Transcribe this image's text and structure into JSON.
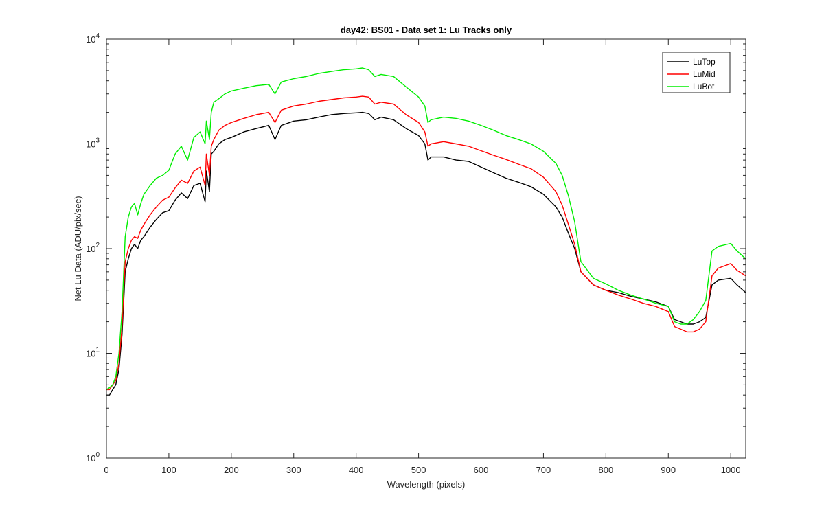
{
  "chart_data": {
    "type": "line",
    "title": "day42: BS01 - Data set 1: Lu Tracks only",
    "xlabel": "Wavelength (pixels)",
    "ylabel": "Net Lu Data (ADU/pix/sec)",
    "xlim": [
      0,
      1024
    ],
    "ylim": [
      1,
      10000
    ],
    "yscale": "log",
    "grid": false,
    "legend_position": "top-right",
    "x_ticks": [
      0,
      100,
      200,
      300,
      400,
      500,
      600,
      700,
      800,
      900,
      1000
    ],
    "y_ticks": [
      {
        "value": 1,
        "base": "10",
        "exp": "0"
      },
      {
        "value": 10,
        "base": "10",
        "exp": "1"
      },
      {
        "value": 100,
        "base": "10",
        "exp": "2"
      },
      {
        "value": 1000,
        "base": "10",
        "exp": "3"
      },
      {
        "value": 10000,
        "base": "10",
        "exp": "4"
      }
    ],
    "series": [
      {
        "name": "LuTop",
        "color": "#000000",
        "x": [
          0,
          5,
          10,
          15,
          20,
          25,
          30,
          35,
          40,
          45,
          50,
          55,
          60,
          70,
          80,
          90,
          100,
          110,
          120,
          130,
          140,
          150,
          158,
          160,
          165,
          168,
          172,
          180,
          190,
          200,
          220,
          240,
          260,
          270,
          280,
          300,
          320,
          340,
          360,
          380,
          400,
          410,
          420,
          430,
          440,
          460,
          480,
          500,
          510,
          515,
          520,
          540,
          560,
          580,
          600,
          620,
          640,
          660,
          680,
          700,
          720,
          730,
          740,
          750,
          760,
          780,
          800,
          820,
          840,
          860,
          880,
          900,
          910,
          920,
          930,
          940,
          950,
          960,
          970,
          980,
          1000,
          1010,
          1024
        ],
        "y": [
          4,
          4,
          4.5,
          5,
          7,
          15,
          60,
          80,
          100,
          110,
          100,
          120,
          130,
          160,
          190,
          220,
          230,
          290,
          340,
          300,
          400,
          420,
          280,
          550,
          350,
          800,
          850,
          1000,
          1100,
          1150,
          1300,
          1400,
          1500,
          1100,
          1500,
          1650,
          1700,
          1800,
          1900,
          1950,
          1980,
          2000,
          1950,
          1700,
          1800,
          1700,
          1400,
          1200,
          1000,
          700,
          750,
          750,
          700,
          680,
          600,
          530,
          470,
          430,
          390,
          330,
          250,
          200,
          140,
          100,
          60,
          45,
          40,
          38,
          35,
          33,
          31,
          28,
          21,
          20,
          19,
          19,
          20,
          22,
          45,
          50,
          52,
          45,
          38
        ]
      },
      {
        "name": "LuMid",
        "color": "#ff0000",
        "x": [
          0,
          5,
          10,
          15,
          20,
          25,
          30,
          35,
          40,
          45,
          50,
          55,
          60,
          70,
          80,
          90,
          100,
          110,
          120,
          130,
          140,
          150,
          158,
          160,
          165,
          168,
          172,
          180,
          190,
          200,
          220,
          240,
          260,
          270,
          280,
          300,
          320,
          340,
          360,
          380,
          400,
          410,
          420,
          430,
          440,
          460,
          480,
          500,
          510,
          515,
          520,
          540,
          560,
          580,
          600,
          620,
          640,
          660,
          680,
          700,
          720,
          730,
          740,
          750,
          760,
          780,
          800,
          820,
          840,
          860,
          880,
          900,
          910,
          920,
          930,
          940,
          950,
          960,
          970,
          980,
          1000,
          1010,
          1024
        ],
        "y": [
          4.5,
          4.5,
          5,
          5.5,
          8,
          18,
          75,
          100,
          120,
          130,
          125,
          150,
          170,
          210,
          250,
          290,
          310,
          380,
          450,
          420,
          550,
          600,
          400,
          800,
          500,
          950,
          1100,
          1350,
          1500,
          1600,
          1750,
          1900,
          2000,
          1600,
          2100,
          2300,
          2400,
          2550,
          2650,
          2750,
          2800,
          2850,
          2800,
          2400,
          2500,
          2400,
          1900,
          1600,
          1300,
          950,
          1000,
          1050,
          1000,
          950,
          860,
          780,
          710,
          640,
          580,
          480,
          350,
          260,
          170,
          110,
          60,
          45,
          40,
          36,
          33,
          30,
          28,
          25,
          18,
          17,
          16,
          16,
          17,
          20,
          55,
          65,
          72,
          62,
          55
        ]
      },
      {
        "name": "LuBot",
        "color": "#00ee00",
        "x": [
          0,
          5,
          10,
          15,
          20,
          25,
          30,
          35,
          40,
          45,
          50,
          55,
          60,
          70,
          80,
          90,
          100,
          110,
          120,
          130,
          140,
          150,
          158,
          160,
          165,
          168,
          172,
          180,
          190,
          200,
          220,
          240,
          260,
          270,
          280,
          300,
          320,
          340,
          360,
          380,
          400,
          410,
          420,
          430,
          440,
          460,
          480,
          500,
          510,
          515,
          520,
          540,
          560,
          580,
          600,
          620,
          640,
          660,
          680,
          700,
          720,
          730,
          740,
          750,
          760,
          780,
          800,
          820,
          840,
          860,
          880,
          900,
          910,
          920,
          930,
          940,
          950,
          960,
          970,
          980,
          1000,
          1010,
          1024
        ],
        "y": [
          4.5,
          4.7,
          5,
          6,
          10,
          25,
          130,
          200,
          250,
          270,
          210,
          270,
          330,
          400,
          470,
          500,
          560,
          800,
          950,
          700,
          1150,
          1300,
          1000,
          1650,
          1100,
          2000,
          2500,
          2700,
          3000,
          3200,
          3400,
          3600,
          3700,
          3000,
          3900,
          4200,
          4400,
          4700,
          4900,
          5100,
          5200,
          5300,
          5100,
          4400,
          4600,
          4400,
          3500,
          2800,
          2300,
          1600,
          1700,
          1800,
          1750,
          1650,
          1500,
          1350,
          1200,
          1100,
          1000,
          850,
          650,
          500,
          320,
          180,
          75,
          52,
          46,
          40,
          36,
          33,
          30,
          28,
          20,
          19,
          19,
          21,
          25,
          32,
          95,
          105,
          112,
          95,
          80
        ]
      }
    ]
  }
}
